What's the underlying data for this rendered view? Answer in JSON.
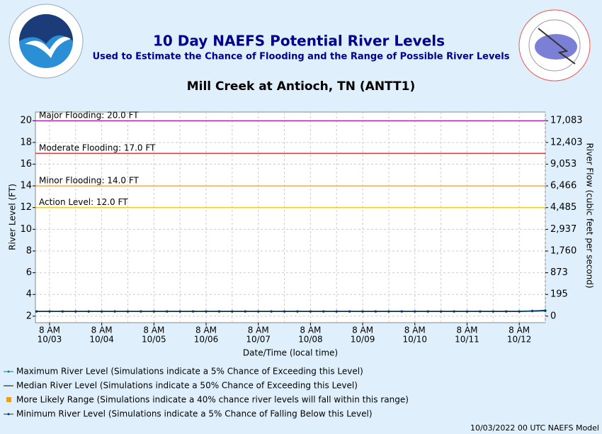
{
  "chart_data": {
    "type": "line",
    "title": "10 Day NAEFS Potential River Levels",
    "subtitle": "Used to Estimate the Chance of Flooding and the Range of Possible River Levels",
    "station": "Mill Creek at Antioch, TN (ANTT1)",
    "y_label": "River Level (FT)",
    "y2_label": "River Flow (cubic feet per second)",
    "x_label": "Date/Time (local time)",
    "footer": "10/03/2022 00 UTC NAEFS Model",
    "grid": true,
    "ylim": [
      1.4,
      20.8
    ],
    "yticks": [
      2,
      4,
      6,
      8,
      10,
      12,
      14,
      16,
      18,
      20
    ],
    "flow_ticks": [
      {
        "stage": 20,
        "value": 17083,
        "label": "17,083"
      },
      {
        "stage": 18,
        "value": 12403,
        "label": "12,403"
      },
      {
        "stage": 16,
        "value": 9053,
        "label": "9,053"
      },
      {
        "stage": 14,
        "value": 6466,
        "label": "6,466"
      },
      {
        "stage": 12,
        "value": 4485,
        "label": "4,485"
      },
      {
        "stage": 10,
        "value": 2937,
        "label": "2,937"
      },
      {
        "stage": 8,
        "value": 1760,
        "label": "1,760"
      },
      {
        "stage": 6,
        "value": 873,
        "label": "873"
      },
      {
        "stage": 4,
        "value": 195,
        "label": "195"
      },
      {
        "stage": 2,
        "value": 0,
        "label": "0"
      }
    ],
    "xlim": [
      "10/03 01:30",
      "10/12 20:00"
    ],
    "xticks": [
      {
        "value": "10/03 08:00",
        "label": [
          "8 AM",
          "10/03"
        ]
      },
      {
        "value": "10/04 08:00",
        "label": [
          "8 AM",
          "10/04"
        ]
      },
      {
        "value": "10/05 08:00",
        "label": [
          "8 AM",
          "10/05"
        ]
      },
      {
        "value": "10/06 08:00",
        "label": [
          "8 AM",
          "10/06"
        ]
      },
      {
        "value": "10/07 08:00",
        "label": [
          "8 AM",
          "10/07"
        ]
      },
      {
        "value": "10/08 08:00",
        "label": [
          "8 AM",
          "10/08"
        ]
      },
      {
        "value": "10/09 08:00",
        "label": [
          "8 AM",
          "10/09"
        ]
      },
      {
        "value": "10/10 08:00",
        "label": [
          "8 AM",
          "10/10"
        ]
      },
      {
        "value": "10/11 08:00",
        "label": [
          "8 AM",
          "10/11"
        ]
      },
      {
        "value": "10/12 08:00",
        "label": [
          "8 AM",
          "10/12"
        ]
      }
    ],
    "thresholds": [
      {
        "value": 20,
        "label": "Major Flooding: 20.0 FT",
        "color": "#c000c0"
      },
      {
        "value": 17,
        "label": "Moderate Flooding: 17.0 FT",
        "color": "#d00000"
      },
      {
        "value": 14,
        "label": "Minor Flooding: 14.0 FT",
        "color": "#ff9933"
      },
      {
        "value": 12,
        "label": "Action Level: 12.0 FT",
        "color": "#f0c800"
      }
    ],
    "x": [
      "10/03 02:00",
      "10/03 08:00",
      "10/03 14:00",
      "10/03 20:00",
      "10/04 02:00",
      "10/04 08:00",
      "10/04 14:00",
      "10/04 20:00",
      "10/05 02:00",
      "10/05 08:00",
      "10/05 14:00",
      "10/05 20:00",
      "10/06 02:00",
      "10/06 08:00",
      "10/06 14:00",
      "10/06 20:00",
      "10/07 02:00",
      "10/07 08:00",
      "10/07 14:00",
      "10/07 20:00",
      "10/08 02:00",
      "10/08 08:00",
      "10/08 14:00",
      "10/08 20:00",
      "10/09 02:00",
      "10/09 08:00",
      "10/09 14:00",
      "10/09 20:00",
      "10/10 02:00",
      "10/10 08:00",
      "10/10 14:00",
      "10/10 20:00",
      "10/11 02:00",
      "10/11 08:00",
      "10/11 14:00",
      "10/11 20:00",
      "10/12 02:00",
      "10/12 08:00",
      "10/12 14:00",
      "10/12 20:00"
    ],
    "series": [
      {
        "name": "Maximum River Level (Simulations indicate a 5% Chance of Exceeding this Level)",
        "color": "#008080",
        "marker": true,
        "values": [
          2.45,
          2.45,
          2.45,
          2.45,
          2.45,
          2.45,
          2.45,
          2.45,
          2.45,
          2.45,
          2.45,
          2.45,
          2.45,
          2.45,
          2.45,
          2.45,
          2.45,
          2.45,
          2.45,
          2.45,
          2.45,
          2.45,
          2.45,
          2.45,
          2.45,
          2.45,
          2.45,
          2.45,
          2.45,
          2.45,
          2.45,
          2.45,
          2.45,
          2.45,
          2.45,
          2.45,
          2.45,
          2.45,
          2.5,
          2.55
        ]
      },
      {
        "name": "Median River Level (Simulations indicate a 50% Chance of Exceeding this Level)",
        "color": "#000000",
        "marker": false,
        "values": [
          2.45,
          2.45,
          2.45,
          2.45,
          2.45,
          2.45,
          2.45,
          2.45,
          2.45,
          2.45,
          2.45,
          2.45,
          2.45,
          2.45,
          2.45,
          2.45,
          2.45,
          2.45,
          2.45,
          2.45,
          2.45,
          2.45,
          2.45,
          2.45,
          2.45,
          2.45,
          2.45,
          2.45,
          2.45,
          2.45,
          2.45,
          2.45,
          2.45,
          2.45,
          2.45,
          2.45,
          2.45,
          2.45,
          2.45,
          2.5
        ]
      },
      {
        "name": "Minimum River Level (Simulations indicate a 5% Chance of Falling Below this Level)",
        "color": "#003366",
        "marker": true,
        "values": [
          2.42,
          2.42,
          2.42,
          2.42,
          2.42,
          2.42,
          2.42,
          2.42,
          2.42,
          2.42,
          2.42,
          2.42,
          2.42,
          2.42,
          2.42,
          2.42,
          2.42,
          2.42,
          2.42,
          2.42,
          2.42,
          2.42,
          2.42,
          2.42,
          2.42,
          2.42,
          2.42,
          2.42,
          2.42,
          2.42,
          2.42,
          2.42,
          2.42,
          2.42,
          2.42,
          2.42,
          2.42,
          2.42,
          2.45,
          2.48
        ]
      }
    ],
    "range": {
      "name": "More Likely Range (Simulations indicate a 40% chance river levels will fall within this range)",
      "color": "#ff9900"
    }
  }
}
